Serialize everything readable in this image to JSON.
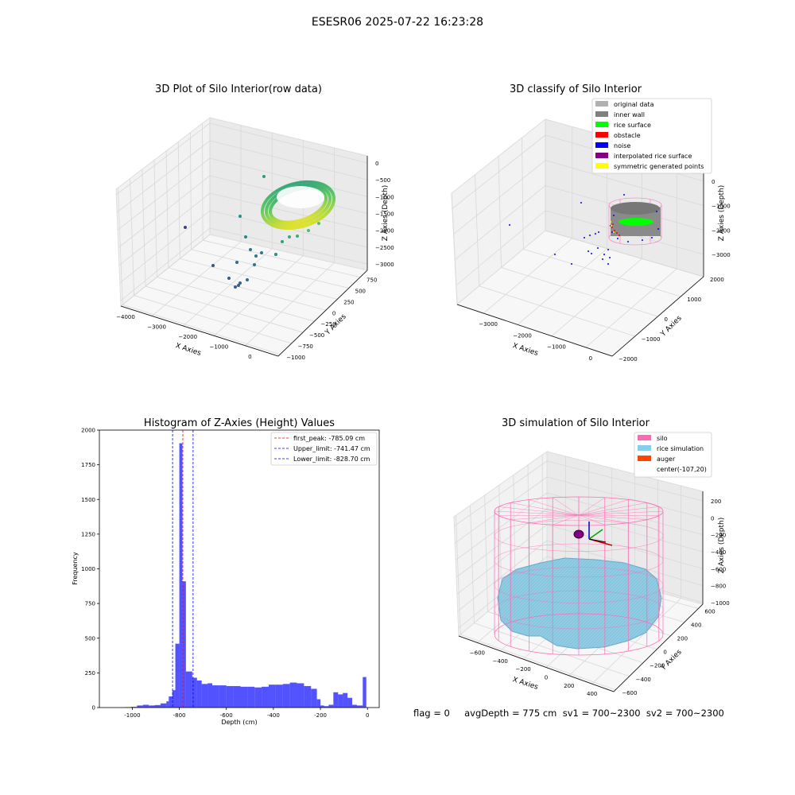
{
  "suptitle": "ESESR06 2025-07-22 16:23:28",
  "status_line": "flag = 0     avgDepth = 775 cm  sv1 = 700~2300  sv2 = 700~2300",
  "chart_data": [
    {
      "type": "scatter",
      "projection": "3d",
      "title": "3D Plot of Silo Interior(row data)",
      "xlabel": "X Axies",
      "ylabel": "Y Axies",
      "zlabel": "Z Axies (Depth)",
      "x_ticks": [
        "−4000",
        "−3000",
        "−2000",
        "−1000",
        "0"
      ],
      "y_ticks": [
        "−1000",
        "−750",
        "−500",
        "−250",
        "0",
        "250",
        "500",
        "750"
      ],
      "z_ticks": [
        "0",
        "−500",
        "−1000",
        "−1500",
        "−2000",
        "−2500",
        "−3000"
      ],
      "colormap": "viridis",
      "grid": true
    },
    {
      "type": "scatter",
      "projection": "3d",
      "title": "3D classify of Silo Interior",
      "xlabel": "X Axies",
      "ylabel": "Y Axies",
      "zlabel": "Z Axies (Depth)",
      "x_ticks": [
        "−3000",
        "−2000",
        "−1000",
        "0"
      ],
      "y_ticks": [
        "−2000",
        "−1000",
        "0",
        "1000",
        "2000"
      ],
      "z_ticks": [
        "0",
        "−1000",
        "−2000",
        "−3000"
      ],
      "legend": [
        {
          "label": "original data",
          "color": "#b0b0b0"
        },
        {
          "label": "inner wall",
          "color": "#808080"
        },
        {
          "label": "rice surface",
          "color": "#00ff00"
        },
        {
          "label": "obstacle",
          "color": "#ff0000"
        },
        {
          "label": "noise",
          "color": "#0000ff"
        },
        {
          "label": "interpolated rice surface",
          "color": "#800080"
        },
        {
          "label": "symmetric generated points",
          "color": "#ffff00"
        }
      ],
      "legend_position": "top-right",
      "grid": true
    },
    {
      "type": "bar",
      "title": "Histogram of Z-Axies (Height) Values",
      "xlabel": "Depth (cm)",
      "ylabel": "Frequency",
      "xlim": [
        -1140,
        50
      ],
      "ylim": [
        0,
        2000
      ],
      "x_ticks": [
        -1000,
        -800,
        -600,
        -400,
        -200,
        0
      ],
      "y_ticks": [
        0,
        250,
        500,
        750,
        1000,
        1250,
        1500,
        1750,
        2000
      ],
      "bar_color": "#0000ff",
      "bar_alpha": 0.68,
      "bins": [
        [
          -1055,
          -1030,
          1
        ],
        [
          -1030,
          -1005,
          3
        ],
        [
          -1005,
          -980,
          5
        ],
        [
          -980,
          -955,
          15
        ],
        [
          -955,
          -930,
          20
        ],
        [
          -930,
          -905,
          15
        ],
        [
          -905,
          -880,
          18
        ],
        [
          -880,
          -855,
          30
        ],
        [
          -855,
          -845,
          45
        ],
        [
          -845,
          -830,
          80
        ],
        [
          -830,
          -817,
          125
        ],
        [
          -817,
          -800,
          460
        ],
        [
          -800,
          -787,
          1905
        ],
        [
          -787,
          -772,
          910
        ],
        [
          -772,
          -745,
          260
        ],
        [
          -745,
          -725,
          215
        ],
        [
          -725,
          -705,
          195
        ],
        [
          -705,
          -680,
          170
        ],
        [
          -680,
          -660,
          175
        ],
        [
          -660,
          -630,
          160
        ],
        [
          -630,
          -600,
          160
        ],
        [
          -600,
          -570,
          155
        ],
        [
          -570,
          -540,
          155
        ],
        [
          -540,
          -510,
          150
        ],
        [
          -510,
          -480,
          150
        ],
        [
          -480,
          -450,
          145
        ],
        [
          -450,
          -420,
          150
        ],
        [
          -420,
          -390,
          165
        ],
        [
          -390,
          -360,
          165
        ],
        [
          -360,
          -330,
          170
        ],
        [
          -330,
          -300,
          180
        ],
        [
          -300,
          -270,
          175
        ],
        [
          -270,
          -240,
          155
        ],
        [
          -240,
          -215,
          135
        ],
        [
          -215,
          -200,
          60
        ],
        [
          -200,
          -185,
          15
        ],
        [
          -185,
          -165,
          10
        ],
        [
          -165,
          -145,
          20
        ],
        [
          -145,
          -125,
          110
        ],
        [
          -125,
          -105,
          95
        ],
        [
          -105,
          -85,
          105
        ],
        [
          -85,
          -65,
          70
        ],
        [
          -65,
          -45,
          20
        ],
        [
          -45,
          -20,
          15
        ],
        [
          -20,
          -5,
          220
        ]
      ],
      "vlines": [
        {
          "label": "first_peak: -785.09 cm",
          "x": -785.09,
          "color": "#ff0000"
        },
        {
          "label": "Upper_limit: -741.47 cm",
          "x": -741.47,
          "color": "#0000ff"
        },
        {
          "label": "Lower_limit: -828.70 cm",
          "x": -828.7,
          "color": "#0000ff"
        }
      ],
      "legend_position": "top-right",
      "grid": false
    },
    {
      "type": "scatter",
      "projection": "3d",
      "title": "3D simulation of Silo Interior",
      "xlabel": "X Axies",
      "ylabel": "Y Axies",
      "zlabel": "Z Axies (Depth)",
      "x_ticks": [
        "−600",
        "−400",
        "−200",
        "0",
        "200",
        "400"
      ],
      "y_ticks": [
        "−600",
        "−400",
        "−200",
        "0",
        "200",
        "400",
        "600"
      ],
      "z_ticks": [
        "200",
        "0",
        "−200",
        "−400",
        "−600",
        "−800",
        "−1000"
      ],
      "legend": [
        {
          "label": "silo",
          "color": "#ff69b4"
        },
        {
          "label": "rice simulation",
          "color": "#87ceeb"
        },
        {
          "label": "auger",
          "color": "#ff4500"
        },
        {
          "label": "center(-107,20)",
          "color": ""
        }
      ],
      "legend_position": "top-right",
      "grid": true
    }
  ]
}
